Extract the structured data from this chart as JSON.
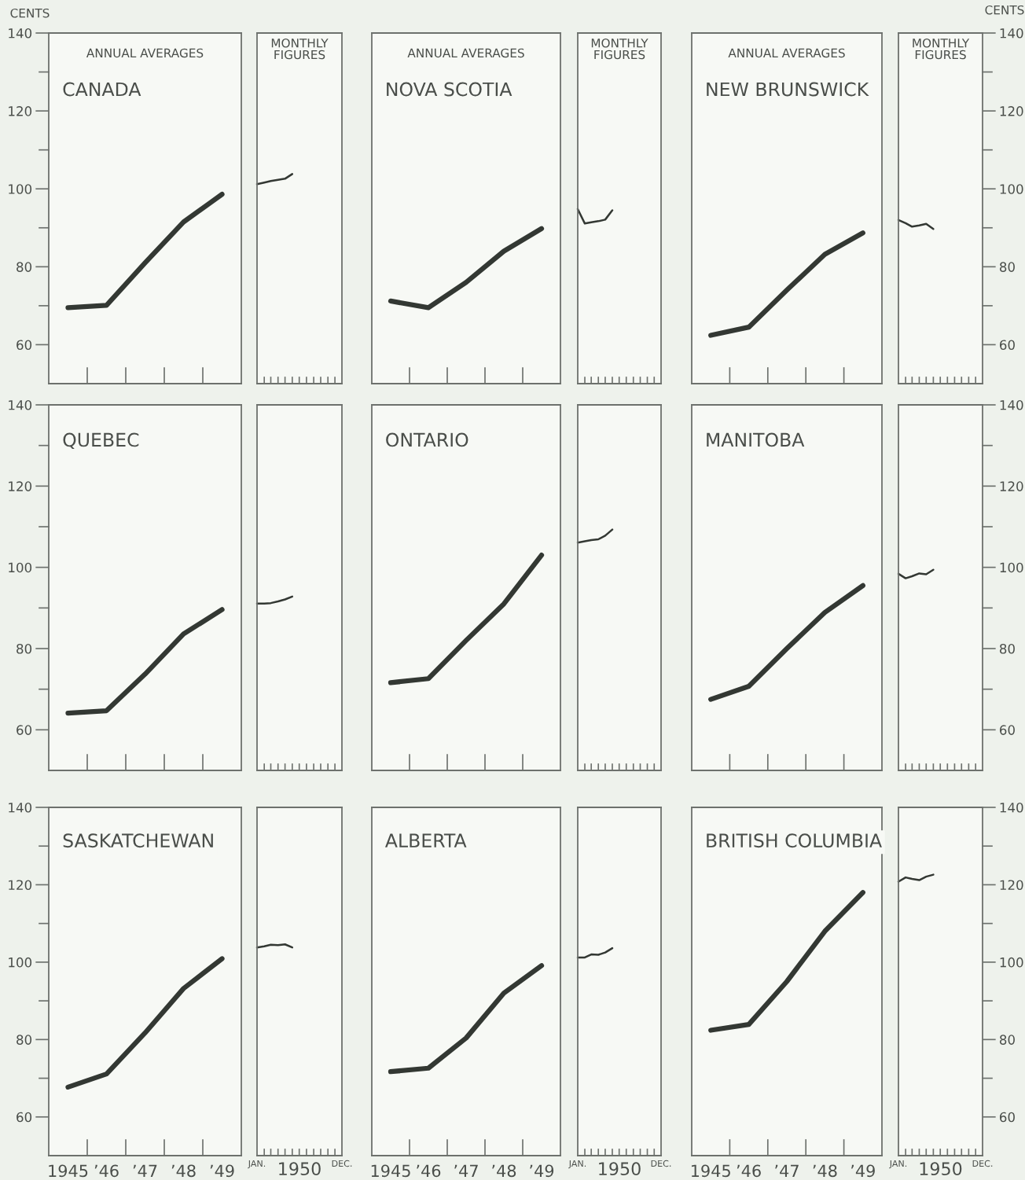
{
  "chart_data": [
    {
      "type": "line",
      "title": "CANADA",
      "subtitle": "ANNUAL AVERAGES",
      "ylabel": "CENTS",
      "x": [
        1945,
        1946,
        1947,
        1948,
        1949
      ],
      "xlim": [
        1944.5,
        1949.5
      ],
      "ylim": [
        50,
        140
      ],
      "yticks": [
        60,
        80,
        100,
        120,
        140
      ],
      "tick_labels": "y",
      "series": [
        {
          "color": "#333833",
          "values": [
            69.5,
            70.1,
            81,
            91.5,
            98.6
          ]
        }
      ]
    },
    {
      "type": "line",
      "title": "MONTHLY\nFIGURES",
      "x": [
        "1950-01",
        "1950-02",
        "1950-03",
        "1950-04",
        "1950-05",
        "1950-06"
      ],
      "xlim": [
        "1950-01-01",
        "1950-12-31"
      ],
      "ylim": [
        50,
        140
      ],
      "tick_labels": false,
      "series": [
        {
          "color": "#333833",
          "values": [
            101.2,
            101.6,
            102.0,
            102.3,
            102.6,
            103.8
          ]
        }
      ]
    },
    {
      "type": "line",
      "title": "NOVA SCOTIA",
      "subtitle": "ANNUAL AVERAGES",
      "x": [
        1945,
        1946,
        1947,
        1948,
        1949
      ],
      "xlim": [
        1944.5,
        1949.5
      ],
      "ylim": [
        50,
        140
      ],
      "tick_labels": false,
      "series": [
        {
          "color": "#333833",
          "values": [
            71.2,
            69.5,
            76,
            84,
            89.8
          ]
        }
      ]
    },
    {
      "type": "line",
      "title": "MONTHLY\nFIGURES",
      "x": [
        "1950-01",
        "1950-02",
        "1950-03",
        "1950-04",
        "1950-05",
        "1950-06"
      ],
      "xlim": [
        "1950-01-01",
        "1950-12-31"
      ],
      "ylim": [
        50,
        140
      ],
      "tick_labels": false,
      "series": [
        {
          "color": "#333833",
          "values": [
            94.8,
            91.1,
            91.4,
            91.7,
            92.1,
            94.5
          ]
        }
      ]
    },
    {
      "type": "line",
      "title": "NEW BRUNSWICK",
      "subtitle": "ANNUAL AVERAGES",
      "x": [
        1945,
        1946,
        1947,
        1948,
        1949
      ],
      "xlim": [
        1944.5,
        1949.5
      ],
      "ylim": [
        50,
        140
      ],
      "tick_labels": false,
      "series": [
        {
          "color": "#333833",
          "values": [
            62.4,
            64.5,
            74,
            83.2,
            88.7
          ]
        }
      ]
    },
    {
      "type": "line",
      "title": "MONTHLY\nFIGURES",
      "y2label": "CENTS",
      "x": [
        "1950-01",
        "1950-02",
        "1950-03",
        "1950-04",
        "1950-05",
        "1950-06"
      ],
      "xlim": [
        "1950-01-01",
        "1950-12-31"
      ],
      "y2lim": [
        50,
        140
      ],
      "y2ticks": [
        60,
        80,
        100,
        120,
        140
      ],
      "tick_labels": "y",
      "series": [
        {
          "color": "#333833",
          "axis": "y2",
          "values": [
            92.0,
            91.2,
            90.3,
            90.6,
            91.0,
            89.7
          ]
        }
      ]
    },
    {
      "type": "line",
      "title": "QUEBEC",
      "x": [
        1945,
        1946,
        1947,
        1948,
        1949
      ],
      "xlim": [
        1944.5,
        1949.5
      ],
      "ylim": [
        50,
        140
      ],
      "yticks": [
        60,
        80,
        100,
        120,
        140
      ],
      "tick_labels": "y",
      "series": [
        {
          "color": "#333833",
          "values": [
            64.1,
            64.7,
            73.7,
            83.6,
            89.6
          ]
        }
      ]
    },
    {
      "type": "line",
      "x": [
        "1950-01",
        "1950-02",
        "1950-03",
        "1950-04",
        "1950-05",
        "1950-06"
      ],
      "xlim": [
        "1950-01-01",
        "1950-12-31"
      ],
      "ylim": [
        50,
        140
      ],
      "tick_labels": false,
      "series": [
        {
          "color": "#333833",
          "values": [
            91.1,
            91.1,
            91.2,
            91.6,
            92.1,
            92.8
          ]
        }
      ]
    },
    {
      "type": "line",
      "title": "ONTARIO",
      "x": [
        1945,
        1946,
        1947,
        1948,
        1949
      ],
      "xlim": [
        1944.5,
        1949.5
      ],
      "ylim": [
        50,
        140
      ],
      "tick_labels": false,
      "series": [
        {
          "color": "#333833",
          "values": [
            71.6,
            72.6,
            82,
            91,
            103
          ]
        }
      ]
    },
    {
      "type": "line",
      "x": [
        "1950-01",
        "1950-02",
        "1950-03",
        "1950-04",
        "1950-05",
        "1950-06"
      ],
      "xlim": [
        "1950-01-01",
        "1950-12-31"
      ],
      "ylim": [
        50,
        140
      ],
      "tick_labels": false,
      "series": [
        {
          "color": "#333833",
          "values": [
            106.1,
            106.4,
            106.7,
            106.9,
            107.8,
            109.3
          ]
        }
      ]
    },
    {
      "type": "line",
      "title": "MANITOBA",
      "x": [
        1945,
        1946,
        1947,
        1948,
        1949
      ],
      "xlim": [
        1944.5,
        1949.5
      ],
      "ylim": [
        50,
        140
      ],
      "tick_labels": false,
      "series": [
        {
          "color": "#333833",
          "values": [
            67.5,
            70.7,
            80,
            88.9,
            95.5
          ]
        }
      ]
    },
    {
      "type": "line",
      "x": [
        "1950-01",
        "1950-02",
        "1950-03",
        "1950-04",
        "1950-05",
        "1950-06"
      ],
      "xlim": [
        "1950-01-01",
        "1950-12-31"
      ],
      "y2lim": [
        50,
        140
      ],
      "y2ticks": [
        60,
        80,
        100,
        120,
        140
      ],
      "tick_labels": "y",
      "series": [
        {
          "color": "#333833",
          "axis": "y2",
          "values": [
            98.4,
            97.3,
            97.8,
            98.5,
            98.3,
            99.4
          ]
        }
      ]
    },
    {
      "type": "line",
      "title": "SASKATCHEWAN",
      "x": [
        1945,
        1946,
        1947,
        1948,
        1949
      ],
      "xlim": [
        1944.5,
        1949.5
      ],
      "xticks": [
        {
          "value": 1945,
          "label": "1945"
        },
        {
          "value": 1946,
          "label": "’46"
        },
        {
          "value": 1947,
          "label": "’47"
        },
        {
          "value": 1948,
          "label": "’48"
        },
        {
          "value": 1949,
          "label": "’49"
        }
      ],
      "ylim": [
        50,
        140
      ],
      "yticks": [
        60,
        80,
        100,
        120,
        140
      ],
      "series": [
        {
          "color": "#333833",
          "values": [
            67.7,
            71.1,
            81.7,
            93.2,
            100.9
          ]
        }
      ]
    },
    {
      "type": "line",
      "xlabel": "1950",
      "x": [
        "1950-01",
        "1950-02",
        "1950-03",
        "1950-04",
        "1950-05",
        "1950-06"
      ],
      "xlim": [
        "1950-01-01",
        "1950-12-31"
      ],
      "xticks": [
        {
          "value": "1950-01-01",
          "label": "JAN."
        },
        {
          "value": "1950-12-31",
          "label": "DEC."
        }
      ],
      "ylim": [
        50,
        140
      ],
      "tick_labels": "x",
      "series": [
        {
          "color": "#333833",
          "values": [
            103.8,
            104.1,
            104.5,
            104.4,
            104.6,
            103.8
          ]
        }
      ]
    },
    {
      "type": "line",
      "title": "ALBERTA",
      "x": [
        1945,
        1946,
        1947,
        1948,
        1949
      ],
      "xlim": [
        1944.5,
        1949.5
      ],
      "xticks": [
        {
          "value": 1945,
          "label": "1945"
        },
        {
          "value": 1946,
          "label": "’46"
        },
        {
          "value": 1947,
          "label": "’47"
        },
        {
          "value": 1948,
          "label": "’48"
        },
        {
          "value": 1949,
          "label": "’49"
        }
      ],
      "ylim": [
        50,
        140
      ],
      "tick_labels": "x",
      "series": [
        {
          "color": "#333833",
          "values": [
            71.7,
            72.6,
            80.4,
            92,
            99.1
          ]
        }
      ]
    },
    {
      "type": "line",
      "xlabel": "1950",
      "x": [
        "1950-01",
        "1950-02",
        "1950-03",
        "1950-04",
        "1950-05",
        "1950-06"
      ],
      "xlim": [
        "1950-01-01",
        "1950-12-31"
      ],
      "xticks": [
        {
          "value": "1950-01-01",
          "label": "JAN."
        },
        {
          "value": "1950-12-31",
          "label": "DEC."
        }
      ],
      "ylim": [
        50,
        140
      ],
      "tick_labels": "x",
      "series": [
        {
          "color": "#333833",
          "values": [
            101.2,
            101.2,
            102.0,
            101.9,
            102.5,
            103.6
          ]
        }
      ]
    },
    {
      "type": "line",
      "title": "BRITISH COLUMBIA",
      "x": [
        1945,
        1946,
        1947,
        1948,
        1949
      ],
      "xlim": [
        1944.5,
        1949.5
      ],
      "xticks": [
        {
          "value": 1945,
          "label": "1945"
        },
        {
          "value": 1946,
          "label": "’46"
        },
        {
          "value": 1947,
          "label": "’47"
        },
        {
          "value": 1948,
          "label": "’48"
        },
        {
          "value": 1949,
          "label": "’49"
        }
      ],
      "ylim": [
        50,
        140
      ],
      "tick_labels": "x",
      "series": [
        {
          "color": "#333833",
          "values": [
            82.4,
            83.9,
            95,
            108,
            118
          ]
        }
      ]
    },
    {
      "type": "line",
      "xlabel": "1950",
      "x": [
        "1950-01",
        "1950-02",
        "1950-03",
        "1950-04",
        "1950-05",
        "1950-06"
      ],
      "xlim": [
        "1950-01-01",
        "1950-12-31"
      ],
      "xticks": [
        {
          "value": "1950-01-01",
          "label": "JAN."
        },
        {
          "value": "1950-12-31",
          "label": "DEC."
        }
      ],
      "y2lim": [
        50,
        140
      ],
      "y2ticks": [
        60,
        80,
        100,
        120,
        140
      ],
      "series": [
        {
          "color": "#333833",
          "axis": "y2",
          "values": [
            120.8,
            121.9,
            121.5,
            121.2,
            122.1,
            122.6
          ]
        }
      ]
    }
  ]
}
